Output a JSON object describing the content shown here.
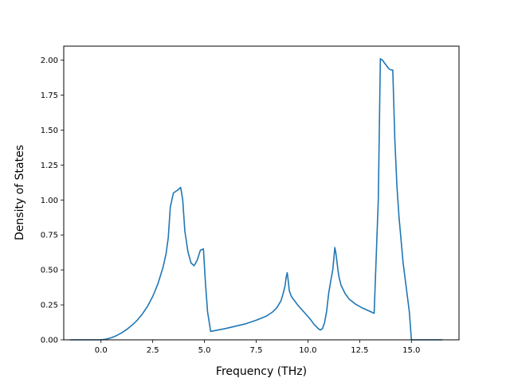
{
  "chart_data": {
    "type": "line",
    "title": "",
    "xlabel": "Frequency (THz)",
    "ylabel": "Density of States",
    "xlim": [
      -1.8,
      17.3
    ],
    "ylim": [
      0.0,
      2.1
    ],
    "xticks": [
      0.0,
      2.5,
      5.0,
      7.5,
      10.0,
      12.5,
      15.0
    ],
    "xtick_labels": [
      "0.0",
      "2.5",
      "5.0",
      "7.5",
      "10.0",
      "12.5",
      "15.0"
    ],
    "yticks": [
      0.0,
      0.25,
      0.5,
      0.75,
      1.0,
      1.25,
      1.5,
      1.75,
      2.0
    ],
    "ytick_labels": [
      "0.00",
      "0.25",
      "0.50",
      "0.75",
      "1.00",
      "1.25",
      "1.50",
      "1.75",
      "2.00"
    ],
    "grid": false,
    "line_color": "#1f77b4",
    "series": [
      {
        "x": [
          -1.5,
          -1.0,
          -0.5,
          0.0,
          0.25,
          0.5,
          0.75,
          1.0,
          1.25,
          1.5,
          1.75,
          2.0,
          2.25,
          2.5,
          2.75,
          3.0,
          3.15,
          3.25,
          3.35,
          3.5,
          3.6,
          3.7,
          3.85,
          3.95,
          4.05,
          4.2,
          4.35,
          4.5,
          4.65,
          4.8,
          4.95,
          5.05,
          5.15,
          5.3,
          6.0,
          7.0,
          7.5,
          8.0,
          8.3,
          8.5,
          8.7,
          8.8,
          8.9,
          8.95,
          9.0,
          9.05,
          9.1,
          9.2,
          9.5,
          9.8,
          10.1,
          10.3,
          10.5,
          10.6,
          10.7,
          10.8,
          10.9,
          11.0,
          11.1,
          11.2,
          11.3,
          11.35,
          11.45,
          11.5,
          11.6,
          11.8,
          12.0,
          12.3,
          12.6,
          12.9,
          13.2,
          13.4,
          13.5,
          13.6,
          13.7,
          13.9,
          14.0,
          14.1,
          14.2,
          14.3,
          14.4,
          14.6,
          14.9,
          15.0,
          15.5,
          16.0,
          16.5
        ],
        "y": [
          0.0,
          0.0,
          0.0,
          0.0,
          0.005,
          0.015,
          0.03,
          0.05,
          0.075,
          0.105,
          0.14,
          0.185,
          0.24,
          0.31,
          0.4,
          0.52,
          0.62,
          0.73,
          0.95,
          1.05,
          1.06,
          1.07,
          1.09,
          1.0,
          0.78,
          0.63,
          0.55,
          0.53,
          0.57,
          0.64,
          0.65,
          0.4,
          0.2,
          0.06,
          0.08,
          0.115,
          0.14,
          0.17,
          0.2,
          0.23,
          0.28,
          0.33,
          0.39,
          0.45,
          0.48,
          0.42,
          0.35,
          0.31,
          0.25,
          0.2,
          0.15,
          0.11,
          0.08,
          0.07,
          0.08,
          0.12,
          0.2,
          0.33,
          0.42,
          0.5,
          0.66,
          0.62,
          0.5,
          0.45,
          0.39,
          0.33,
          0.29,
          0.255,
          0.23,
          0.21,
          0.19,
          1.0,
          2.01,
          2.0,
          1.98,
          1.94,
          1.93,
          1.93,
          1.43,
          1.1,
          0.88,
          0.55,
          0.2,
          0.0,
          0.0,
          0.0,
          0.0
        ]
      }
    ]
  }
}
